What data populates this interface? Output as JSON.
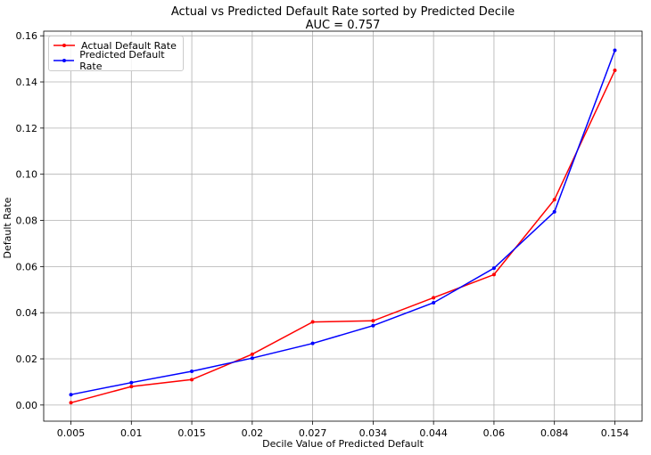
{
  "chart_data": {
    "type": "line",
    "title": "Actual vs Predicted Default Rate sorted by Predicted Decile",
    "subtitle": "AUC = 0.757",
    "xlabel": "Decile Value of Predicted Default",
    "ylabel": "Default Rate",
    "categories": [
      "0.005",
      "0.01",
      "0.015",
      "0.02",
      "0.027",
      "0.034",
      "0.044",
      "0.06",
      "0.084",
      "0.154"
    ],
    "ylim": [
      -0.007,
      0.162
    ],
    "yticks": [
      0.0,
      0.02,
      0.04,
      0.06,
      0.08,
      0.1,
      0.12,
      0.14,
      0.16
    ],
    "ytick_labels": [
      "0.00",
      "0.02",
      "0.04",
      "0.06",
      "0.08",
      "0.10",
      "0.12",
      "0.14",
      "0.16"
    ],
    "grid": true,
    "legend_position": "upper-left",
    "series": [
      {
        "name": "Actual Default Rate",
        "color": "#ff0000",
        "values": [
          0.001,
          0.008,
          0.011,
          0.022,
          0.036,
          0.0365,
          0.0465,
          0.0565,
          0.089,
          0.145
        ]
      },
      {
        "name": "Predicted Default Rate",
        "color": "#0000ff",
        "values": [
          0.0045,
          0.0097,
          0.0146,
          0.0203,
          0.0267,
          0.0344,
          0.0443,
          0.0593,
          0.0837,
          0.1537
        ]
      }
    ]
  }
}
